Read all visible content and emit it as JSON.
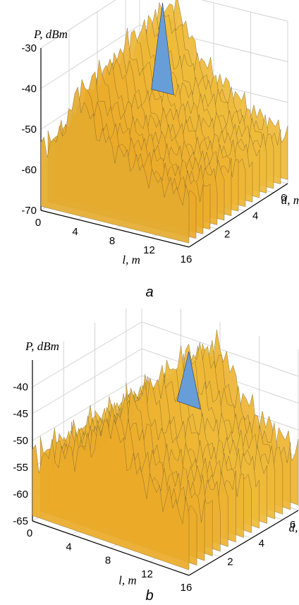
{
  "chart_data": [
    {
      "type": "surface",
      "caption": "a",
      "zlabel": "P, dBm",
      "xlabel": "l, m",
      "ylabel": "d, m",
      "zlim": [
        -70,
        -30
      ],
      "xlim": [
        0,
        16
      ],
      "ylim": [
        0,
        7
      ],
      "zticks": [
        "-30",
        "-40",
        "-50",
        "-60",
        "-70"
      ],
      "xticks": [
        "0",
        "4",
        "8",
        "12",
        "16"
      ],
      "yticks": [
        "2",
        "4",
        "6"
      ],
      "grid": true,
      "peak": {
        "l": 4,
        "d": 6,
        "P": -30
      },
      "profile": [
        {
          "l": 0,
          "P": -53
        },
        {
          "l": 2,
          "P": -48
        },
        {
          "l": 4,
          "P": -30
        },
        {
          "l": 6,
          "P": -42
        },
        {
          "l": 8,
          "P": -47
        },
        {
          "l": 10,
          "P": -50
        },
        {
          "l": 12,
          "P": -54
        },
        {
          "l": 14,
          "P": -56
        },
        {
          "l": 16,
          "P": -58
        }
      ]
    },
    {
      "type": "surface",
      "caption": "b",
      "zlabel": "P, dBm",
      "xlabel": "l, m",
      "ylabel": "d, m",
      "zlim": [
        -65,
        -35
      ],
      "xlim": [
        0,
        16
      ],
      "ylim": [
        0,
        7
      ],
      "zticks": [
        "-40",
        "-45",
        "-50",
        "-55",
        "-60",
        "-65"
      ],
      "xticks": [
        "0",
        "4",
        "8",
        "12",
        "16"
      ],
      "yticks": [
        "2",
        "4",
        "6"
      ],
      "grid": true,
      "peak": {
        "l": 8,
        "d": 5,
        "P": -37
      },
      "profile": [
        {
          "l": 0,
          "P": -53
        },
        {
          "l": 2,
          "P": -51
        },
        {
          "l": 4,
          "P": -49
        },
        {
          "l": 6,
          "P": -45
        },
        {
          "l": 8,
          "P": -37
        },
        {
          "l": 10,
          "P": -46
        },
        {
          "l": 12,
          "P": -50
        },
        {
          "l": 14,
          "P": -52
        },
        {
          "l": 16,
          "P": -54
        }
      ]
    }
  ]
}
